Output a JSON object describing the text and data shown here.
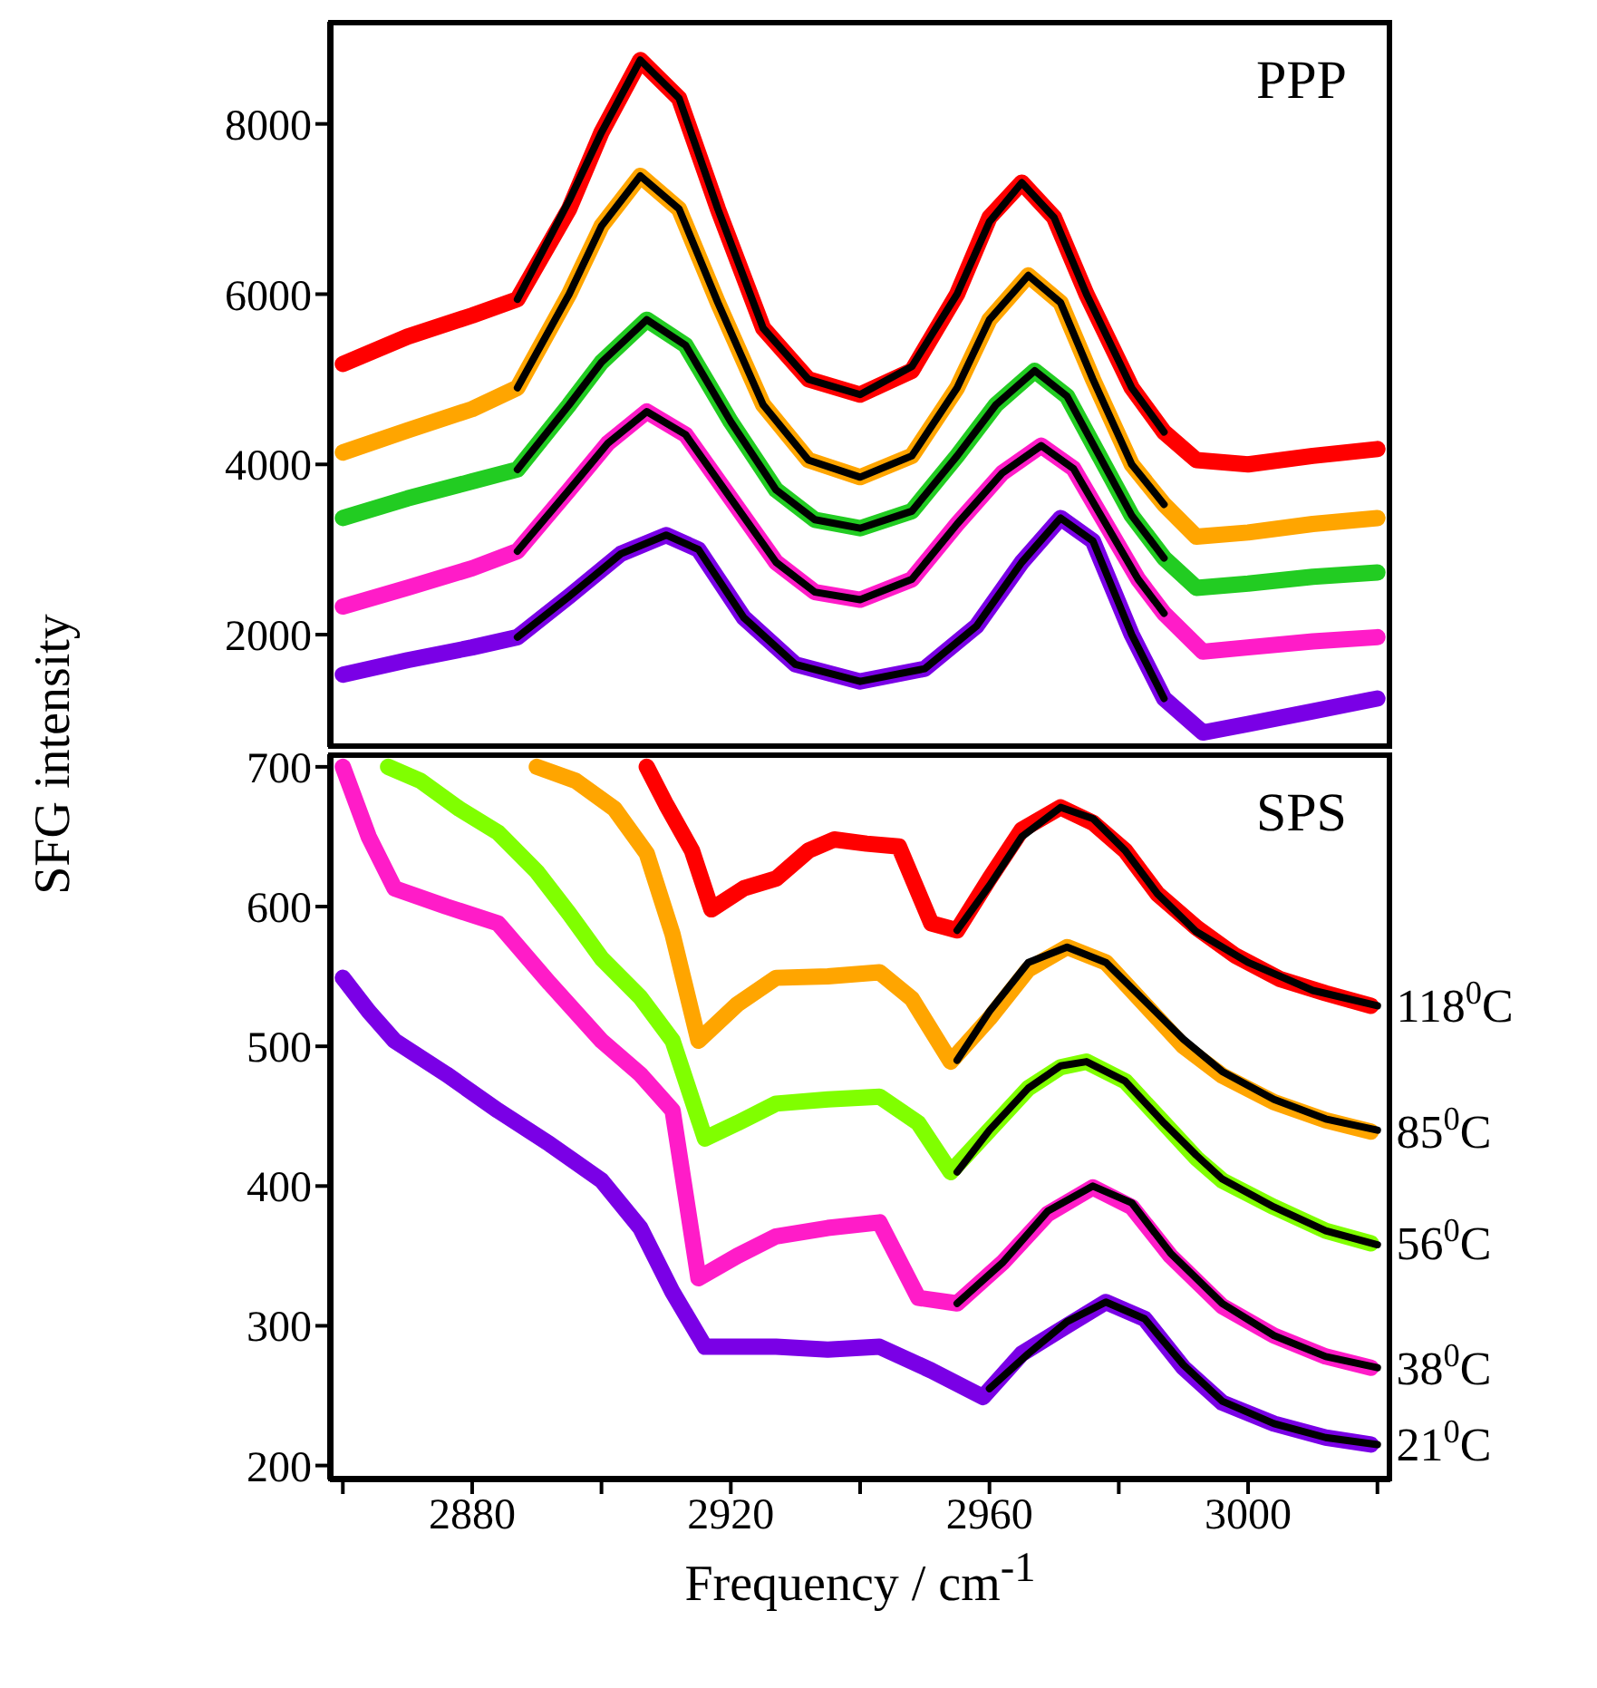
{
  "chart_data": [
    {
      "type": "line",
      "annotations": [
        "PPP"
      ],
      "xlim": [
        2858,
        3022
      ],
      "ylim": [
        680,
        9200
      ],
      "yticks": [
        2000,
        4000,
        6000,
        8000
      ],
      "tick_labels": "y",
      "grid": false,
      "legend": false,
      "marker": "none",
      "line_style": "solid",
      "series": [
        {
          "color": "#ff0000",
          "x": [
            2860,
            2870,
            2880,
            2887,
            2895,
            2900,
            2906,
            2912,
            2918,
            2925,
            2932,
            2940,
            2948,
            2955,
            2960,
            2965,
            2970,
            2975,
            2982,
            2987,
            2992,
            3000,
            3010,
            3020
          ],
          "values": [
            5180,
            5500,
            5750,
            5940,
            7000,
            7900,
            8750,
            8300,
            7000,
            5600,
            5000,
            4820,
            5100,
            6000,
            6900,
            7310,
            6900,
            6000,
            4900,
            4380,
            4050,
            4000,
            4100,
            4180
          ]
        },
        {
          "color": "#ffa500",
          "x": [
            2860,
            2870,
            2880,
            2887,
            2895,
            2900,
            2906,
            2912,
            2918,
            2925,
            2932,
            2940,
            2948,
            2955,
            2960,
            2966,
            2971,
            2976,
            2982,
            2987,
            2992,
            3000,
            3010,
            3020
          ],
          "values": [
            4140,
            4400,
            4650,
            4900,
            6000,
            6800,
            7390,
            7000,
            5900,
            4700,
            4050,
            3850,
            4100,
            4900,
            5700,
            6220,
            5900,
            5000,
            4000,
            3530,
            3150,
            3200,
            3300,
            3370
          ]
        },
        {
          "color": "#22cc22",
          "x": [
            2860,
            2870,
            2880,
            2887,
            2895,
            2900,
            2907,
            2913,
            2920,
            2927,
            2933,
            2940,
            2948,
            2955,
            2961,
            2967,
            2972,
            2977,
            2982,
            2987,
            2992,
            3000,
            3010,
            3020
          ],
          "values": [
            3370,
            3600,
            3800,
            3940,
            4700,
            5200,
            5700,
            5400,
            4500,
            3700,
            3350,
            3250,
            3450,
            4100,
            4700,
            5100,
            4800,
            4100,
            3400,
            2900,
            2550,
            2600,
            2680,
            2730
          ]
        },
        {
          "color": "#ff1cc8",
          "x": [
            2860,
            2870,
            2880,
            2887,
            2895,
            2901,
            2907,
            2913,
            2920,
            2927,
            2933,
            2940,
            2948,
            2955,
            2962,
            2968,
            2973,
            2978,
            2983,
            2987,
            2993,
            3000,
            3010,
            3020
          ],
          "values": [
            2330,
            2550,
            2780,
            2980,
            3700,
            4250,
            4620,
            4350,
            3600,
            2850,
            2500,
            2410,
            2650,
            3300,
            3900,
            4220,
            3950,
            3300,
            2650,
            2250,
            1800,
            1850,
            1920,
            1970
          ]
        },
        {
          "color": "#7a00e6",
          "x": [
            2860,
            2870,
            2880,
            2887,
            2895,
            2903,
            2910,
            2915,
            2922,
            2930,
            2940,
            2950,
            2958,
            2965,
            2971,
            2976,
            2982,
            2987,
            2993,
            3000,
            3010,
            3020
          ],
          "values": [
            1530,
            1700,
            1850,
            1970,
            2450,
            2950,
            3170,
            3000,
            2200,
            1650,
            1450,
            1600,
            2100,
            2850,
            3370,
            3100,
            2000,
            1250,
            850,
            950,
            1100,
            1250
          ]
        },
        {
          "color": "#000000",
          "x": [
            2887,
            2895,
            2900,
            2906,
            2912,
            2918,
            2925,
            2932,
            2940,
            2948,
            2955,
            2960,
            2965,
            2970,
            2975,
            2982,
            2987
          ],
          "values": [
            5940,
            7100,
            7900,
            8750,
            8300,
            7000,
            5600,
            5000,
            4820,
            5150,
            6000,
            6850,
            7310,
            6900,
            6000,
            4900,
            4380
          ]
        },
        {
          "color": "#000000",
          "x": [
            2887,
            2895,
            2900,
            2906,
            2912,
            2918,
            2925,
            2932,
            2940,
            2948,
            2955,
            2960,
            2966,
            2971,
            2976,
            2982,
            2987
          ],
          "values": [
            4900,
            6000,
            6800,
            7390,
            7000,
            5900,
            4700,
            4050,
            3850,
            4100,
            4900,
            5700,
            6220,
            5900,
            5000,
            4000,
            3530
          ]
        },
        {
          "color": "#000000",
          "x": [
            2887,
            2895,
            2900,
            2907,
            2913,
            2920,
            2927,
            2933,
            2940,
            2948,
            2955,
            2961,
            2967,
            2972,
            2977,
            2982,
            2987
          ],
          "values": [
            3940,
            4700,
            5200,
            5700,
            5400,
            4500,
            3700,
            3350,
            3250,
            3450,
            4100,
            4700,
            5100,
            4800,
            4100,
            3400,
            2900
          ]
        },
        {
          "color": "#000000",
          "x": [
            2887,
            2895,
            2901,
            2907,
            2913,
            2920,
            2927,
            2933,
            2940,
            2948,
            2955,
            2962,
            2968,
            2973,
            2978,
            2983,
            2987
          ],
          "values": [
            2980,
            3700,
            4250,
            4620,
            4350,
            3600,
            2850,
            2500,
            2410,
            2650,
            3300,
            3900,
            4220,
            3950,
            3300,
            2650,
            2250
          ]
        },
        {
          "color": "#000000",
          "x": [
            2887,
            2895,
            2903,
            2910,
            2915,
            2922,
            2930,
            2940,
            2950,
            2958,
            2965,
            2971,
            2976,
            2982,
            2987
          ],
          "values": [
            1970,
            2450,
            2950,
            3170,
            3000,
            2200,
            1650,
            1450,
            1600,
            2100,
            2850,
            3370,
            3100,
            2000,
            1250
          ]
        }
      ]
    },
    {
      "type": "line",
      "annotations": [
        "SPS"
      ],
      "xlabel": "Frequency / cm$^{-1}$",
      "ylabel": "SFG intensity",
      "xlim": [
        2858,
        3022
      ],
      "xticks": [
        {
          "value": 2860,
          "label": null
        },
        2880,
        {
          "value": 2900,
          "label": null
        },
        2920,
        {
          "value": 2940,
          "label": null
        },
        2960,
        {
          "value": 2980,
          "label": null
        },
        3000,
        {
          "value": 3020,
          "label": null
        }
      ],
      "ylim": [
        190,
        709
      ],
      "yticks": [
        200,
        300,
        400,
        500,
        600,
        700
      ],
      "grid": false,
      "legend": false,
      "marker": "none",
      "line_style": "solid",
      "series": [
        {
          "name": "118$^{0}$C",
          "color": "#ff0000",
          "x": [
            2907,
            2910,
            2914,
            2917,
            2922,
            2927,
            2932,
            2936,
            2941,
            2946,
            2951,
            2955,
            2960,
            2965,
            2971,
            2976,
            2981,
            2986,
            2992,
            2998,
            3005,
            3012,
            3019
          ],
          "values": [
            700,
            673,
            640,
            598,
            613,
            620,
            640,
            648,
            645,
            643,
            588,
            583,
            620,
            655,
            671,
            660,
            640,
            609,
            585,
            565,
            548,
            538,
            529
          ]
        },
        {
          "name": "85$^{0}$C",
          "color": "#ffa500",
          "x": [
            2890,
            2896,
            2902,
            2907,
            2911,
            2915,
            2921,
            2927,
            2935,
            2943,
            2948,
            2954,
            2960,
            2966,
            2972,
            2978,
            2985,
            2990,
            2996,
            3004,
            3012,
            3019
          ],
          "values": [
            700,
            690,
            670,
            638,
            580,
            504,
            530,
            549,
            550,
            553,
            534,
            489,
            520,
            555,
            571,
            560,
            525,
            500,
            479,
            460,
            447,
            439
          ]
        },
        {
          "name": "56$^{0}$C",
          "color": "#80ff00",
          "x": [
            2867,
            2872,
            2878,
            2884,
            2890,
            2895,
            2900,
            2906,
            2911,
            2916,
            2921,
            2927,
            2935,
            2943,
            2949,
            2954,
            2960,
            2966,
            2971,
            2975,
            2981,
            2987,
            2992,
            2996,
            3004,
            3012,
            3019
          ],
          "values": [
            700,
            690,
            670,
            653,
            625,
            595,
            563,
            535,
            504,
            434,
            445,
            459,
            462,
            464,
            445,
            410,
            440,
            470,
            485,
            489,
            475,
            445,
            420,
            404,
            385,
            368,
            359
          ]
        },
        {
          "name": "38$^{0}$C",
          "color": "#ff1cc8",
          "x": [
            2860,
            2864,
            2868,
            2876,
            2884,
            2892,
            2900,
            2906,
            2911,
            2915,
            2921,
            2927,
            2935,
            2943,
            2949,
            2955,
            2962,
            2969,
            2976,
            2982,
            2988,
            2996,
            3004,
            3012,
            3019
          ],
          "values": [
            700,
            650,
            613,
            600,
            588,
            545,
            504,
            480,
            454,
            334,
            350,
            364,
            370,
            374,
            320,
            316,
            345,
            380,
            399,
            385,
            350,
            314,
            293,
            278,
            270
          ]
        },
        {
          "name": "21$^{0}$C",
          "color": "#7a00e6",
          "x": [
            2860,
            2864,
            2868,
            2876,
            2884,
            2892,
            2900,
            2906,
            2911,
            2916,
            2921,
            2927,
            2935,
            2943,
            2951,
            2959,
            2965,
            2972,
            2978,
            2984,
            2990,
            2996,
            3004,
            3012,
            3019
          ],
          "values": [
            549,
            525,
            504,
            480,
            454,
            430,
            404,
            370,
            324,
            285,
            285,
            285,
            283,
            285,
            268,
            249,
            280,
            300,
            317,
            305,
            270,
            245,
            230,
            220,
            215
          ]
        },
        {
          "color": "#000000",
          "x": [
            2955,
            2960,
            2965,
            2971,
            2976,
            2981,
            2986,
            2992,
            3000,
            3010,
            3020
          ],
          "values": [
            583,
            615,
            650,
            671,
            663,
            640,
            609,
            582,
            560,
            540,
            529
          ]
        },
        {
          "color": "#000000",
          "x": [
            2955,
            2960,
            2966,
            2972,
            2978,
            2985,
            2990,
            2996,
            3004,
            3012,
            3020
          ],
          "values": [
            490,
            525,
            560,
            571,
            560,
            528,
            505,
            482,
            462,
            448,
            440
          ]
        },
        {
          "color": "#000000",
          "x": [
            2955,
            2960,
            2966,
            2971,
            2975,
            2981,
            2987,
            2992,
            2996,
            3004,
            3012,
            3020
          ],
          "values": [
            410,
            440,
            470,
            486,
            489,
            475,
            445,
            422,
            405,
            385,
            368,
            358
          ]
        },
        {
          "color": "#000000",
          "x": [
            2955,
            2962,
            2969,
            2976,
            2982,
            2988,
            2996,
            3004,
            3012,
            3020
          ],
          "values": [
            316,
            345,
            382,
            400,
            388,
            352,
            316,
            293,
            278,
            270
          ]
        },
        {
          "color": "#000000",
          "x": [
            2960,
            2966,
            2972,
            2978,
            2984,
            2990,
            2996,
            3004,
            3012,
            3020
          ],
          "values": [
            255,
            280,
            303,
            317,
            305,
            272,
            246,
            230,
            220,
            215
          ]
        }
      ]
    }
  ]
}
